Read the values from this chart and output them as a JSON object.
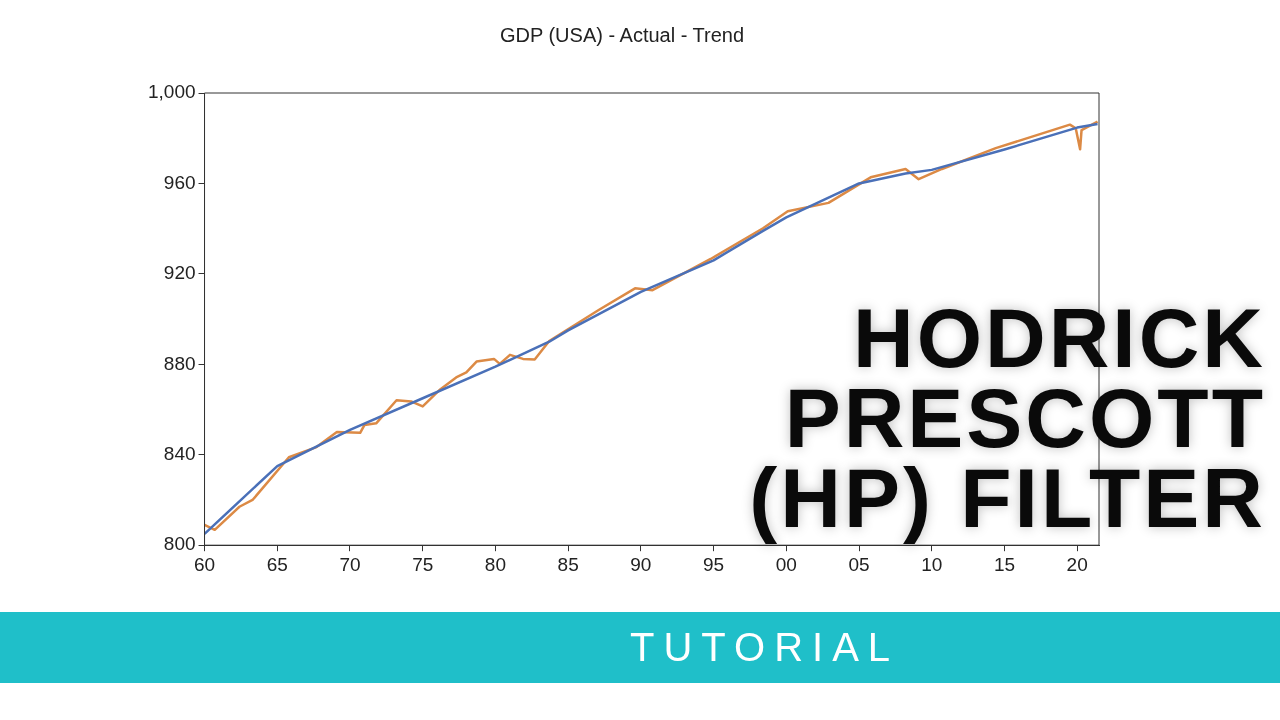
{
  "chart_data": {
    "type": "line",
    "title": "GDP (USA) - Actual - Trend",
    "marker": "none",
    "line_style": "solid",
    "xlim": [
      1960,
      2021.5
    ],
    "xticks": [
      {
        "value": 1960,
        "label": "60"
      },
      {
        "value": 1965,
        "label": "65"
      },
      {
        "value": 1970,
        "label": "70"
      },
      {
        "value": 1975,
        "label": "75"
      },
      {
        "value": 1980,
        "label": "80"
      },
      {
        "value": 1985,
        "label": "85"
      },
      {
        "value": 1990,
        "label": "90"
      },
      {
        "value": 1995,
        "label": "95"
      },
      {
        "value": 2000,
        "label": "00"
      },
      {
        "value": 2005,
        "label": "05"
      },
      {
        "value": 2010,
        "label": "10"
      },
      {
        "value": 2015,
        "label": "15"
      },
      {
        "value": 2020,
        "label": "20"
      }
    ],
    "ylim": [
      800,
      1000
    ],
    "yticks": [
      800,
      840,
      880,
      920,
      960,
      {
        "value": 1000,
        "label": "1,000"
      }
    ],
    "series": [
      {
        "color": "#4a70b8",
        "x": [
          1960,
          1965,
          1970,
          1975,
          1980,
          1983.7,
          1985,
          1990,
          1995,
          1998.4,
          2000,
          2005,
          2008.2,
          2010,
          2015,
          2020,
          2021.4
        ],
        "values": [
          805,
          835,
          851,
          865,
          879,
          890,
          895,
          912,
          926,
          939,
          945,
          960,
          964.4,
          966,
          975,
          984.7,
          986.3
        ]
      },
      {
        "color": "#dc8a45",
        "x": [
          1960,
          1960.7,
          1962.4,
          1963.3,
          1965.8,
          1967.7,
          1969.1,
          1970.7,
          1971.0,
          1971.8,
          1973.2,
          1974.2,
          1975.0,
          1976.2,
          1977.3,
          1978.0,
          1978.7,
          1979.9,
          1980.3,
          1981.0,
          1981.9,
          1982.7,
          1983.7,
          1987.1,
          1989.6,
          1990.8,
          1994.8,
          1998.4,
          2000.1,
          2002.9,
          2005.8,
          2008.2,
          2009.1,
          2010.7,
          2014.4,
          2019.5,
          2019.9,
          2020.2,
          2020.3,
          2021.4
        ],
        "values": [
          809,
          806.8,
          817,
          820,
          838.9,
          843.4,
          850.1,
          849.7,
          853.2,
          853.9,
          864.1,
          863.6,
          861.4,
          868.9,
          874.2,
          876.4,
          881.2,
          882.4,
          880.2,
          884.2,
          882.4,
          882.1,
          890.3,
          904,
          913.6,
          912.8,
          926.6,
          940.2,
          947.7,
          951.4,
          962.7,
          966.4,
          961.9,
          966.4,
          975.6,
          986.0,
          984.4,
          975.1,
          983.6,
          987.3
        ]
      }
    ],
    "annotations": [
      "HODRICK PRESCOTT (HP) FILTER",
      "TUTORIAL"
    ]
  }
}
